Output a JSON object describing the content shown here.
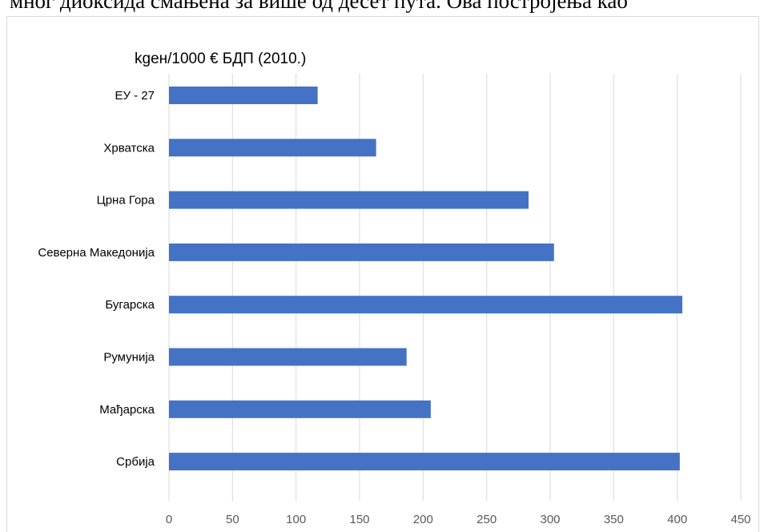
{
  "page": {
    "cut_text": "мног диоксида смањена за више од десет пута. Ова постројења као"
  },
  "chart_data": {
    "type": "bar",
    "orientation": "horizontal",
    "title": "kgeн/1000 € БДП (2010.)",
    "categories": [
      "ЕУ - 27",
      "Хрватска",
      "Црна Гора",
      "Северна Македонија",
      "Бугарска",
      "Румунија",
      "Мађарска",
      "Србија"
    ],
    "values": [
      117,
      163,
      283,
      303,
      404,
      187,
      206,
      402
    ],
    "xlim": [
      0,
      450
    ],
    "xticks": [
      "0",
      "50",
      "100",
      "150",
      "200",
      "250",
      "300",
      "350",
      "400",
      "450"
    ],
    "grid": "vertical",
    "bar_color": "#4472c4",
    "grid_color": "#d9d9d9"
  }
}
